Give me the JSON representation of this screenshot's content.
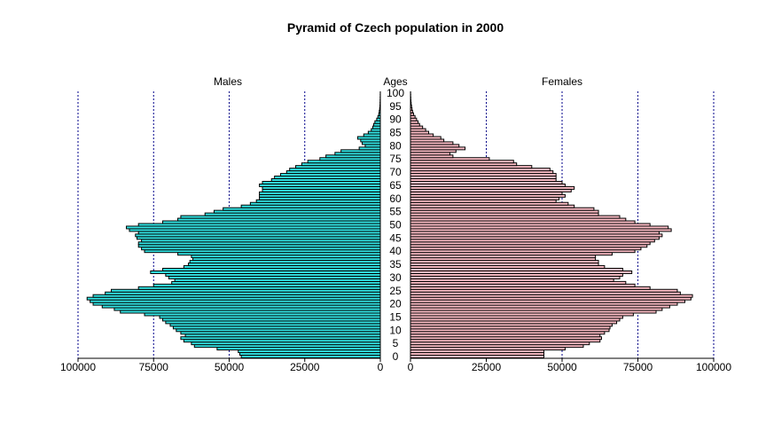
{
  "chart_data": {
    "type": "bar",
    "title": "Pyramid of Czech population in 2000",
    "left_label": "Males",
    "center_label": "Ages",
    "right_label": "Females",
    "colors": {
      "males": "#33e6e6",
      "females": "#ffbfc8",
      "gridline": "#00008b"
    },
    "xlim": [
      0,
      100000
    ],
    "x_ticks_left": [
      "100000",
      "75000",
      "50000",
      "25000",
      "0"
    ],
    "x_ticks_right": [
      "0",
      "25000",
      "50000",
      "75000",
      "100000"
    ],
    "age_ticks": [
      "0",
      "5",
      "10",
      "15",
      "20",
      "25",
      "30",
      "35",
      "40",
      "45",
      "50",
      "55",
      "60",
      "65",
      "70",
      "75",
      "80",
      "85",
      "90",
      "95",
      "100"
    ],
    "grid": "vertical dotted lines at 25000, 50000, 75000, 100000",
    "series": [
      {
        "name": "Males",
        "values": [
          46000,
          46500,
          47000,
          54000,
          61500,
          62500,
          65000,
          66000,
          64500,
          66000,
          67500,
          68500,
          69500,
          71000,
          72000,
          73000,
          78000,
          86000,
          88000,
          92000,
          95000,
          96000,
          97000,
          95000,
          91000,
          89000,
          80000,
          75000,
          69000,
          68000,
          70000,
          71000,
          76000,
          72000,
          65000,
          63500,
          63000,
          62000,
          62500,
          67000,
          78000,
          79000,
          80000,
          80000,
          79000,
          80500,
          81000,
          80000,
          83000,
          84000,
          80000,
          72000,
          67000,
          66000,
          58000,
          55000,
          52000,
          46000,
          43000,
          41000,
          40000,
          40000,
          40000,
          39000,
          39000,
          40000,
          39000,
          36000,
          35000,
          33000,
          31000,
          30000,
          28000,
          26000,
          24000,
          20000,
          18000,
          15000,
          13000,
          7000,
          5000,
          6000,
          6500,
          7500,
          5500,
          4000,
          3000,
          2500,
          2200,
          1800,
          1200,
          800,
          500,
          350,
          220,
          140,
          100,
          70,
          50,
          30,
          20
        ]
      },
      {
        "name": "Females",
        "values": [
          44000,
          44000,
          44000,
          51000,
          57000,
          59000,
          62500,
          63000,
          62500,
          64000,
          65500,
          65800,
          66500,
          68000,
          69000,
          70000,
          73500,
          81000,
          83000,
          85500,
          88000,
          90500,
          92500,
          93000,
          89000,
          88000,
          79000,
          74000,
          71000,
          67000,
          69000,
          70000,
          73000,
          70000,
          64000,
          62000,
          62000,
          61000,
          61000,
          66500,
          74000,
          76000,
          78000,
          79000,
          80500,
          82000,
          83000,
          82000,
          86000,
          85000,
          79000,
          74000,
          71000,
          69000,
          62000,
          62000,
          60500,
          54000,
          52000,
          48000,
          49000,
          51000,
          50000,
          53000,
          54000,
          51000,
          50000,
          48000,
          48000,
          48000,
          47000,
          46000,
          40000,
          35000,
          34000,
          26000,
          14000,
          13000,
          15000,
          18000,
          16000,
          14000,
          11000,
          10000,
          7500,
          6000,
          5000,
          4000,
          3000,
          2500,
          2000,
          1500,
          1000,
          700,
          500,
          350,
          220,
          150,
          100,
          60,
          40
        ]
      }
    ]
  }
}
